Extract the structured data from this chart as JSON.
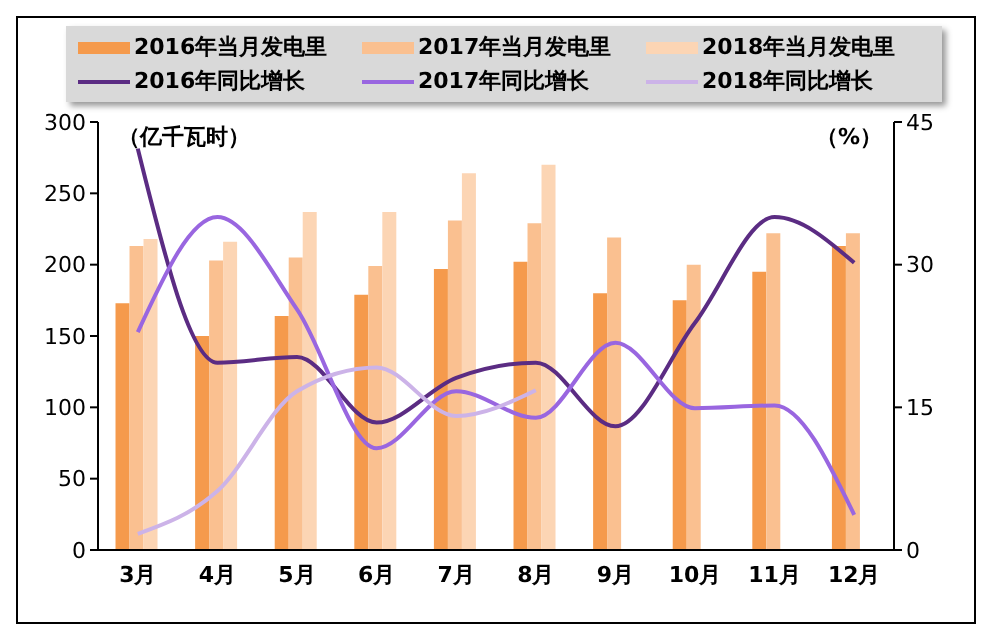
{
  "chart_data": {
    "type": "bar",
    "categories": [
      "3月",
      "4月",
      "5月",
      "6月",
      "7月",
      "8月",
      "9月",
      "10月",
      "11月",
      "12月"
    ],
    "ylabel": "（亿千瓦时）",
    "y2label": "（%）",
    "series": [
      {
        "name": "2016年当月发电里",
        "color": "#f59a4c",
        "values": [
          173,
          150,
          164,
          179,
          197,
          202,
          180,
          175,
          195,
          213
        ]
      },
      {
        "name": "2017年当月发电里",
        "color": "#fac090",
        "values": [
          213,
          203,
          205,
          199,
          231,
          229,
          219,
          200,
          222,
          222
        ]
      },
      {
        "name": "2018年当月发电里",
        "color": "#fcd5b4",
        "values": [
          218,
          216,
          237,
          237,
          264,
          270,
          null,
          null,
          null,
          null
        ]
      },
      {
        "name": "2016年同比增长",
        "type": "line",
        "axis": "y2",
        "color": "#5b2c83",
        "values": [
          42.2,
          19.7,
          20.3,
          13.4,
          18.1,
          19.7,
          13.0,
          23.9,
          35.0,
          30.2
        ]
      },
      {
        "name": "2017年同比增长",
        "type": "line",
        "axis": "y2",
        "color": "#9966e0",
        "values": [
          22.9,
          35.0,
          25.3,
          10.7,
          16.7,
          13.9,
          21.8,
          14.9,
          15.2,
          3.7
        ]
      },
      {
        "name": "2018年同比增长",
        "type": "line",
        "axis": "y2",
        "color": "#ccb3e8",
        "values": [
          1.7,
          6.2,
          16.7,
          19.2,
          14.1,
          16.8,
          null,
          null,
          null,
          null
        ]
      }
    ],
    "ylim": [
      0,
      300
    ],
    "yticks": [
      0,
      50,
      100,
      150,
      200,
      250,
      300
    ],
    "y2lim": [
      0,
      45
    ],
    "y2ticks": [
      0,
      15,
      30,
      45
    ],
    "grid": false,
    "legend": "top",
    "marker": "none",
    "line_style": "solid"
  }
}
